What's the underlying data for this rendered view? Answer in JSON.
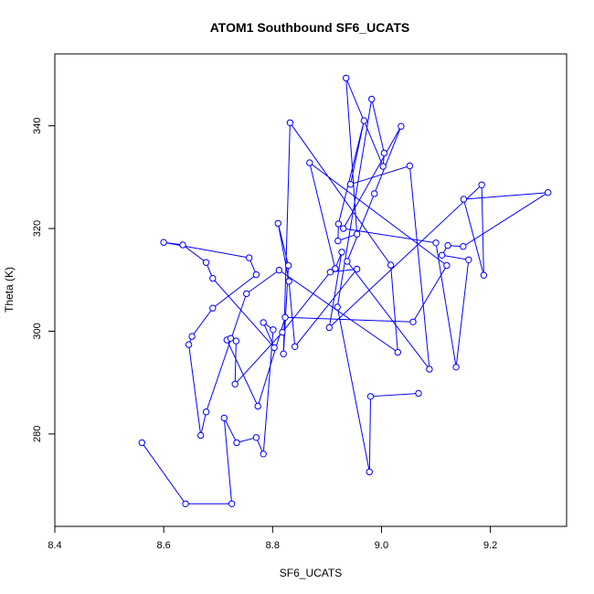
{
  "chart_data": {
    "type": "line",
    "title": "ATOM1 Southbound SF6_UCATS",
    "xlabel": "SF6_UCATS",
    "ylabel": "Theta (K)",
    "xlim": [
      8.4,
      9.34
    ],
    "ylim": [
      262,
      354
    ],
    "x_ticks": [
      8.4,
      8.6,
      8.8,
      9.0,
      9.2
    ],
    "x_tick_labels": [
      "8.4",
      "8.6",
      "8.8",
      "9.0",
      "9.2"
    ],
    "y_ticks": [
      280,
      300,
      320,
      340
    ],
    "y_tick_labels": [
      "280",
      "300",
      "320",
      "340"
    ],
    "series_color": "#0000ff",
    "marker": "open-circle",
    "grid": false,
    "series": [
      {
        "x": [
          9.068,
          8.98,
          8.978,
          8.919,
          8.982,
          9.005,
          9.003,
          8.935,
          8.955,
          8.92,
          8.921,
          8.968,
          8.943,
          9.052,
          9.088,
          8.937,
          8.987,
          9.036,
          8.93,
          9.1,
          9.137,
          9.16,
          9.111,
          9.122,
          9.15,
          9.306,
          9.151,
          9.188,
          9.184,
          8.904,
          8.927,
          8.915,
          8.868,
          9.12,
          9.058,
          8.823,
          8.773,
          8.716,
          8.723,
          8.733,
          8.731,
          8.818,
          8.906,
          8.955,
          8.841,
          8.83,
          8.81,
          8.829,
          8.82,
          8.832,
          9.017,
          9.03,
          8.812,
          8.752,
          8.678,
          8.668,
          8.646,
          8.652,
          8.69,
          8.77,
          8.757,
          8.6,
          8.635,
          8.678,
          8.69,
          8.803,
          8.783,
          8.801,
          8.783,
          8.77,
          8.734,
          8.711,
          8.725,
          8.64,
          8.56
        ]
      }
    ],
    "series_y": [
      287.9,
      287.3,
      272.6,
      304.7,
      345.2,
      334.7,
      332.1,
      349.3,
      318.9,
      317.6,
      320.9,
      341.0,
      328.6,
      332.2,
      292.6,
      313.6,
      326.8,
      339.9,
      320.0,
      317.2,
      293.0,
      313.9,
      314.8,
      316.7,
      316.5,
      327.0,
      325.7,
      310.9,
      328.5,
      300.7,
      315.4,
      312.2,
      332.8,
      312.8,
      301.8,
      302.7,
      285.4,
      298.3,
      298.6,
      298.1,
      289.7,
      299.8,
      311.5,
      312.1,
      297.0,
      309.7,
      321.0,
      312.8,
      295.6,
      340.6,
      312.9,
      295.9,
      311.9,
      307.3,
      284.3,
      279.7,
      297.4,
      299.0,
      304.5,
      311.0,
      314.3,
      317.3,
      316.8,
      313.4,
      310.3,
      296.8,
      301.7,
      300.3,
      276.1,
      279.3,
      278.3,
      283.1,
      266.4,
      266.4,
      278.3
    ]
  }
}
